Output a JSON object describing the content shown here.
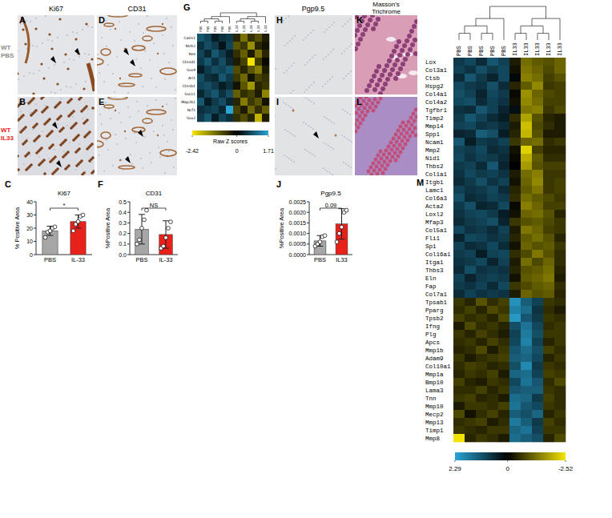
{
  "panel_letters": [
    "A",
    "B",
    "C",
    "D",
    "E",
    "F",
    "G",
    "H",
    "I",
    "J",
    "K",
    "L",
    "M"
  ],
  "row_labels": [
    [
      "WT",
      "PBS"
    ],
    [
      "WT",
      "IL33"
    ]
  ],
  "column_labels": [
    "Ki67",
    "CD31",
    "Pgp9.5",
    "Masson's Trichrome"
  ],
  "chart_data": [
    {
      "type": "bar",
      "title": "Ki67",
      "ylabel": "% Positive Area",
      "categories": [
        "PBS",
        "IL-33"
      ],
      "values": [
        18,
        25
      ],
      "errors": [
        3.5,
        5
      ],
      "points": [
        [
          13,
          17,
          18,
          20,
          21
        ],
        [
          18,
          23,
          25,
          29,
          30
        ]
      ],
      "colors": [
        "#a6a6a6",
        "#e8221b"
      ],
      "ylim": [
        0,
        40
      ],
      "yticks": [
        0,
        10,
        20,
        30,
        40
      ],
      "annotation": "*",
      "grid": false
    },
    {
      "type": "bar",
      "title": "CD31",
      "ylabel": "%Positive Area",
      "categories": [
        "PBS",
        "IL-33"
      ],
      "values": [
        0.24,
        0.19
      ],
      "errors": [
        0.14,
        0.13
      ],
      "points": [
        [
          0.1,
          0.14,
          0.25,
          0.33,
          0.42
        ],
        [
          0.06,
          0.08,
          0.16,
          0.25,
          0.31
        ]
      ],
      "colors": [
        "#a6a6a6",
        "#e8221b"
      ],
      "ylim": [
        0,
        0.5
      ],
      "yticks": [
        {
          "value": 0,
          "label": "0.0"
        },
        0.1,
        0.2,
        0.3,
        0.4,
        0.5
      ],
      "annotation": "NS",
      "grid": false
    },
    {
      "type": "bar",
      "title": "Pgp9.5",
      "ylabel": "%Positive Area",
      "categories": [
        "PBS",
        "IL33"
      ],
      "values": [
        0.00065,
        0.00145
      ],
      "errors": [
        0.00025,
        0.00072
      ],
      "points": [
        [
          0.0004,
          0.0005,
          0.0006,
          0.00085,
          0.0009
        ],
        [
          0.0006,
          0.001,
          0.0013,
          0.002,
          0.0021
        ]
      ],
      "colors": [
        "#a6a6a6",
        "#e8221b"
      ],
      "ylim": [
        0,
        0.0025
      ],
      "yticks": [
        {
          "value": 0,
          "label": "0.0000"
        },
        {
          "value": 0.0005,
          "label": "0.0005"
        },
        {
          "value": 0.001,
          "label": "0.0010"
        },
        {
          "value": 0.0015,
          "label": "0.0015"
        },
        {
          "value": 0.002,
          "label": "0.0020"
        },
        {
          "value": 0.0025,
          "label": "0.0025"
        }
      ],
      "annotation": "0.09",
      "grid": false
    },
    {
      "type": "heatmap",
      "columns": [
        "PBS",
        "PBS",
        "PBS",
        "PBS",
        "PBS",
        "IL33",
        "IL33",
        "IL33",
        "IL33",
        "IL33"
      ],
      "rows": [
        "Calm1",
        "Ntrk2",
        "Nes",
        "Ctnnd1",
        "Sox9",
        "Arl1",
        "Ctnnb1",
        "Sox11",
        "Map2k1",
        "Ncf1",
        "Sox2"
      ],
      "cells": [
        [
          0.9,
          0.7,
          0.3,
          0.5,
          0.6,
          -0.4,
          -1.2,
          -0.5,
          -0.8,
          -0.3
        ],
        [
          0.5,
          0.8,
          0.6,
          0.2,
          0.7,
          -0.9,
          -0.6,
          -1.5,
          -0.4,
          -0.2
        ],
        [
          0.7,
          0.4,
          0.9,
          0.6,
          0.3,
          -0.5,
          -1.0,
          -0.3,
          -1.2,
          -0.4
        ],
        [
          0.6,
          0.9,
          0.5,
          0.8,
          0.4,
          -0.3,
          -0.7,
          -2.4,
          -0.6,
          -0.1
        ],
        [
          0.3,
          0.6,
          0.8,
          0.7,
          0.9,
          -0.8,
          -0.4,
          -0.9,
          -1.3,
          -0.3
        ],
        [
          0.8,
          0.5,
          0.4,
          0.9,
          0.6,
          -0.6,
          -1.1,
          -0.2,
          -0.7,
          -0.5
        ],
        [
          0.7,
          0.8,
          0.6,
          0.3,
          0.5,
          -0.2,
          -0.9,
          -1.6,
          -0.4,
          -0.6
        ],
        [
          0.4,
          0.7,
          0.9,
          0.5,
          0.8,
          -1.0,
          -0.5,
          -0.7,
          -0.3,
          -1.4
        ],
        [
          0.9,
          0.3,
          0.6,
          0.8,
          0.4,
          -0.4,
          -1.3,
          -0.6,
          -0.9,
          -0.2
        ],
        [
          0.5,
          0.6,
          0.7,
          0.4,
          1.7,
          -0.7,
          -0.3,
          -1.1,
          -0.5,
          -1.0
        ],
        [
          0.6,
          0.9,
          0.3,
          0.7,
          0.5,
          -0.5,
          -0.8,
          -0.4,
          -1.9,
          -0.3
        ]
      ],
      "colorbar_label": "Raw Z scores",
      "colorbar_range": [
        -2.42,
        1.71
      ],
      "colorbar_ticks": [
        -2.42,
        0,
        1.71
      ]
    },
    {
      "type": "heatmap",
      "columns": [
        "PBS",
        "PBS",
        "PBS",
        "PBS",
        "PBS",
        "IL33",
        "IL33",
        "IL33",
        "IL33",
        "IL33"
      ],
      "rows": [
        "Lox",
        "Col3a1",
        "Ctsb",
        "Hspg2",
        "Col4a1",
        "Col4a2",
        "Tgfbr1",
        "Timp2",
        "Mmp14",
        "Spp1",
        "Ncam1",
        "Mmp2",
        "Nid1",
        "Thbs2",
        "Col1a1",
        "Itgb1",
        "Lamc1",
        "Col6a3",
        "Acta2",
        "Loxl2",
        "Mfap3",
        "Col5a1",
        "Fli1",
        "Sp1",
        "Col16a1",
        "Itga1",
        "Thbs3",
        "Eln",
        "Fap",
        "Col7a1",
        "Tpsab1",
        "Pparg",
        "Tpsb2",
        "Ifng",
        "Plg",
        "Apcs",
        "Mmp1b",
        "Adam9",
        "Col10a1",
        "Mmp1a",
        "Bmp10",
        "Lama3",
        "Tnn",
        "Mmp10",
        "Mecp2",
        "Mmp13",
        "Timp1",
        "Mmp8"
      ],
      "cells": [
        [
          0.8,
          1.0,
          0.6,
          1.2,
          0.9,
          -0.3,
          -1.2,
          -1.0,
          -0.9,
          -1.1
        ],
        [
          0.9,
          0.7,
          1.1,
          0.8,
          1.0,
          -0.2,
          -1.3,
          -1.1,
          -0.8,
          -1.1
        ],
        [
          0.6,
          1.2,
          0.8,
          0.5,
          1.0,
          0.1,
          -1.4,
          -1.2,
          -0.7,
          -0.9
        ],
        [
          1.0,
          0.8,
          0.7,
          1.1,
          0.6,
          -0.4,
          -1.0,
          -1.5,
          -0.6,
          -0.7
        ],
        [
          1.1,
          0.9,
          0.5,
          1.0,
          0.8,
          -0.1,
          -1.6,
          -1.1,
          -0.8,
          -0.7
        ],
        [
          1.0,
          1.1,
          0.6,
          0.9,
          0.7,
          -0.2,
          -1.5,
          -1.2,
          -0.7,
          -0.7
        ],
        [
          0.7,
          0.6,
          1.2,
          0.9,
          0.5,
          0.2,
          -1.3,
          -1.4,
          -0.6,
          -0.8
        ],
        [
          0.8,
          1.2,
          0.9,
          0.6,
          0.4,
          -0.5,
          -1.8,
          -0.9,
          -0.4,
          -0.3
        ],
        [
          0.9,
          1.0,
          0.7,
          0.8,
          0.6,
          -0.3,
          -2.1,
          -0.8,
          -0.5,
          -0.3
        ],
        [
          0.5,
          0.6,
          1.3,
          1.1,
          0.4,
          -0.4,
          -2.0,
          -0.9,
          -0.3,
          -0.3
        ],
        [
          1.2,
          0.4,
          0.8,
          0.7,
          0.9,
          -0.6,
          -1.1,
          -1.2,
          -0.5,
          -0.6
        ],
        [
          0.9,
          0.8,
          1.0,
          0.6,
          0.7,
          -0.2,
          -2.3,
          -0.7,
          -0.4,
          -0.4
        ],
        [
          1.0,
          0.7,
          0.9,
          0.8,
          0.6,
          -0.1,
          -1.9,
          -1.0,
          -0.5,
          -0.5
        ],
        [
          0.8,
          0.9,
          0.6,
          1.2,
          0.5,
          0.0,
          -1.7,
          -0.9,
          -0.7,
          -0.7
        ],
        [
          0.7,
          1.0,
          0.8,
          0.9,
          0.7,
          -0.3,
          -1.2,
          -1.4,
          -0.6,
          -0.6
        ],
        [
          0.6,
          0.8,
          1.1,
          0.7,
          0.9,
          -0.2,
          -1.1,
          -1.5,
          -0.6,
          -0.7
        ],
        [
          0.9,
          0.7,
          0.8,
          1.0,
          0.6,
          -0.4,
          -1.0,
          -1.3,
          -0.6,
          -0.7
        ],
        [
          1.1,
          0.6,
          0.7,
          0.9,
          0.8,
          -0.5,
          -1.2,
          -1.0,
          -0.8,
          -0.6
        ],
        [
          0.8,
          1.1,
          0.5,
          0.6,
          1.0,
          -0.1,
          -1.4,
          -1.1,
          -0.7,
          -0.7
        ],
        [
          0.7,
          0.9,
          1.0,
          0.8,
          0.4,
          -0.2,
          -1.1,
          -1.2,
          -0.9,
          -0.4
        ],
        [
          0.6,
          0.8,
          0.9,
          1.1,
          0.5,
          -0.6,
          -0.9,
          -1.0,
          -0.8,
          -0.6
        ],
        [
          1.0,
          0.7,
          0.8,
          0.6,
          0.9,
          -0.3,
          -1.3,
          -1.1,
          -0.7,
          -0.6
        ],
        [
          0.5,
          1.0,
          0.9,
          0.7,
          0.8,
          -0.4,
          -1.0,
          -1.2,
          -0.9,
          -0.4
        ],
        [
          0.9,
          0.6,
          0.7,
          1.0,
          0.6,
          -0.2,
          -1.1,
          -0.9,
          -1.0,
          -0.6
        ],
        [
          0.8,
          0.9,
          0.4,
          0.9,
          1.0,
          -0.5,
          -0.8,
          -1.3,
          -0.9,
          -0.5
        ],
        [
          0.7,
          0.8,
          1.0,
          0.5,
          0.9,
          -0.3,
          -1.2,
          -0.8,
          -1.1,
          -0.5
        ],
        [
          0.6,
          1.1,
          0.7,
          0.8,
          0.7,
          -0.4,
          -0.9,
          -1.0,
          -1.2,
          -0.4
        ],
        [
          0.9,
          0.5,
          0.8,
          0.9,
          0.8,
          -0.2,
          -1.0,
          -1.1,
          -1.3,
          -0.3
        ],
        [
          0.8,
          0.7,
          0.9,
          0.6,
          1.0,
          -0.6,
          -0.8,
          -1.0,
          -1.1,
          -0.5
        ],
        [
          0.6,
          0.9,
          0.7,
          0.8,
          0.7,
          -0.3,
          -1.1,
          -0.9,
          -1.0,
          -0.4
        ],
        [
          -0.6,
          -0.4,
          -0.9,
          -0.5,
          -0.7,
          2.0,
          1.3,
          0.9,
          -0.6,
          -0.5
        ],
        [
          -0.5,
          -0.7,
          -0.4,
          -0.8,
          -0.6,
          1.8,
          1.5,
          0.7,
          -0.5,
          -0.3
        ],
        [
          -0.7,
          -0.5,
          -0.6,
          -0.4,
          -0.8,
          2.1,
          1.2,
          0.8,
          -0.6,
          -0.5
        ],
        [
          -0.3,
          -0.8,
          -0.5,
          -0.6,
          -0.4,
          1.1,
          1.6,
          1.0,
          -0.5,
          -0.6
        ],
        [
          -0.6,
          -0.4,
          -0.7,
          -0.5,
          -0.3,
          0.9,
          1.7,
          1.1,
          -0.6,
          -0.6
        ],
        [
          -0.5,
          -0.6,
          -0.4,
          -0.7,
          -0.5,
          1.0,
          1.8,
          0.9,
          -0.4,
          -0.6
        ],
        [
          -0.4,
          -0.5,
          -0.8,
          -0.3,
          -0.6,
          1.2,
          1.5,
          1.1,
          -0.7,
          -0.5
        ],
        [
          -0.6,
          -0.3,
          -0.5,
          -0.6,
          -0.7,
          1.3,
          1.4,
          1.0,
          -0.4,
          -0.6
        ],
        [
          -0.5,
          -0.7,
          -0.6,
          -0.4,
          -0.5,
          1.1,
          1.9,
          0.8,
          -0.6,
          -0.5
        ],
        [
          -0.4,
          -0.6,
          -0.5,
          -0.7,
          -0.3,
          1.4,
          1.5,
          0.9,
          -0.7,
          -0.6
        ],
        [
          -0.7,
          -0.4,
          -0.3,
          -0.6,
          -0.5,
          1.0,
          1.6,
          1.2,
          -0.5,
          -0.8
        ],
        [
          -0.5,
          -0.5,
          -0.7,
          -0.4,
          -0.6,
          1.2,
          1.3,
          1.3,
          -0.6,
          -0.5
        ],
        [
          -0.6,
          -0.7,
          -0.4,
          -0.5,
          -0.3,
          1.5,
          1.4,
          0.8,
          -0.7,
          -0.5
        ],
        [
          -0.3,
          -0.6,
          -0.6,
          -0.5,
          -0.7,
          1.6,
          1.2,
          1.0,
          -0.6,
          -0.5
        ],
        [
          -0.8,
          -0.2,
          -0.5,
          -0.7,
          -0.4,
          1.3,
          1.1,
          1.4,
          -0.4,
          -0.6
        ],
        [
          -0.5,
          -0.6,
          -0.7,
          -0.3,
          -0.5,
          1.7,
          1.3,
          0.8,
          -0.7,
          -0.5
        ],
        [
          -0.6,
          -0.5,
          -0.4,
          -0.6,
          -0.6,
          1.4,
          1.6,
          0.9,
          -0.6,
          -0.6
        ],
        [
          -2.5,
          -0.4,
          -0.6,
          -0.5,
          -0.3,
          1.5,
          1.3,
          1.1,
          -0.4,
          -0.8
        ]
      ],
      "colorbar_range": [
        2.29,
        -2.52
      ],
      "colorbar_ticks": [
        2.29,
        0,
        -2.52
      ]
    }
  ]
}
